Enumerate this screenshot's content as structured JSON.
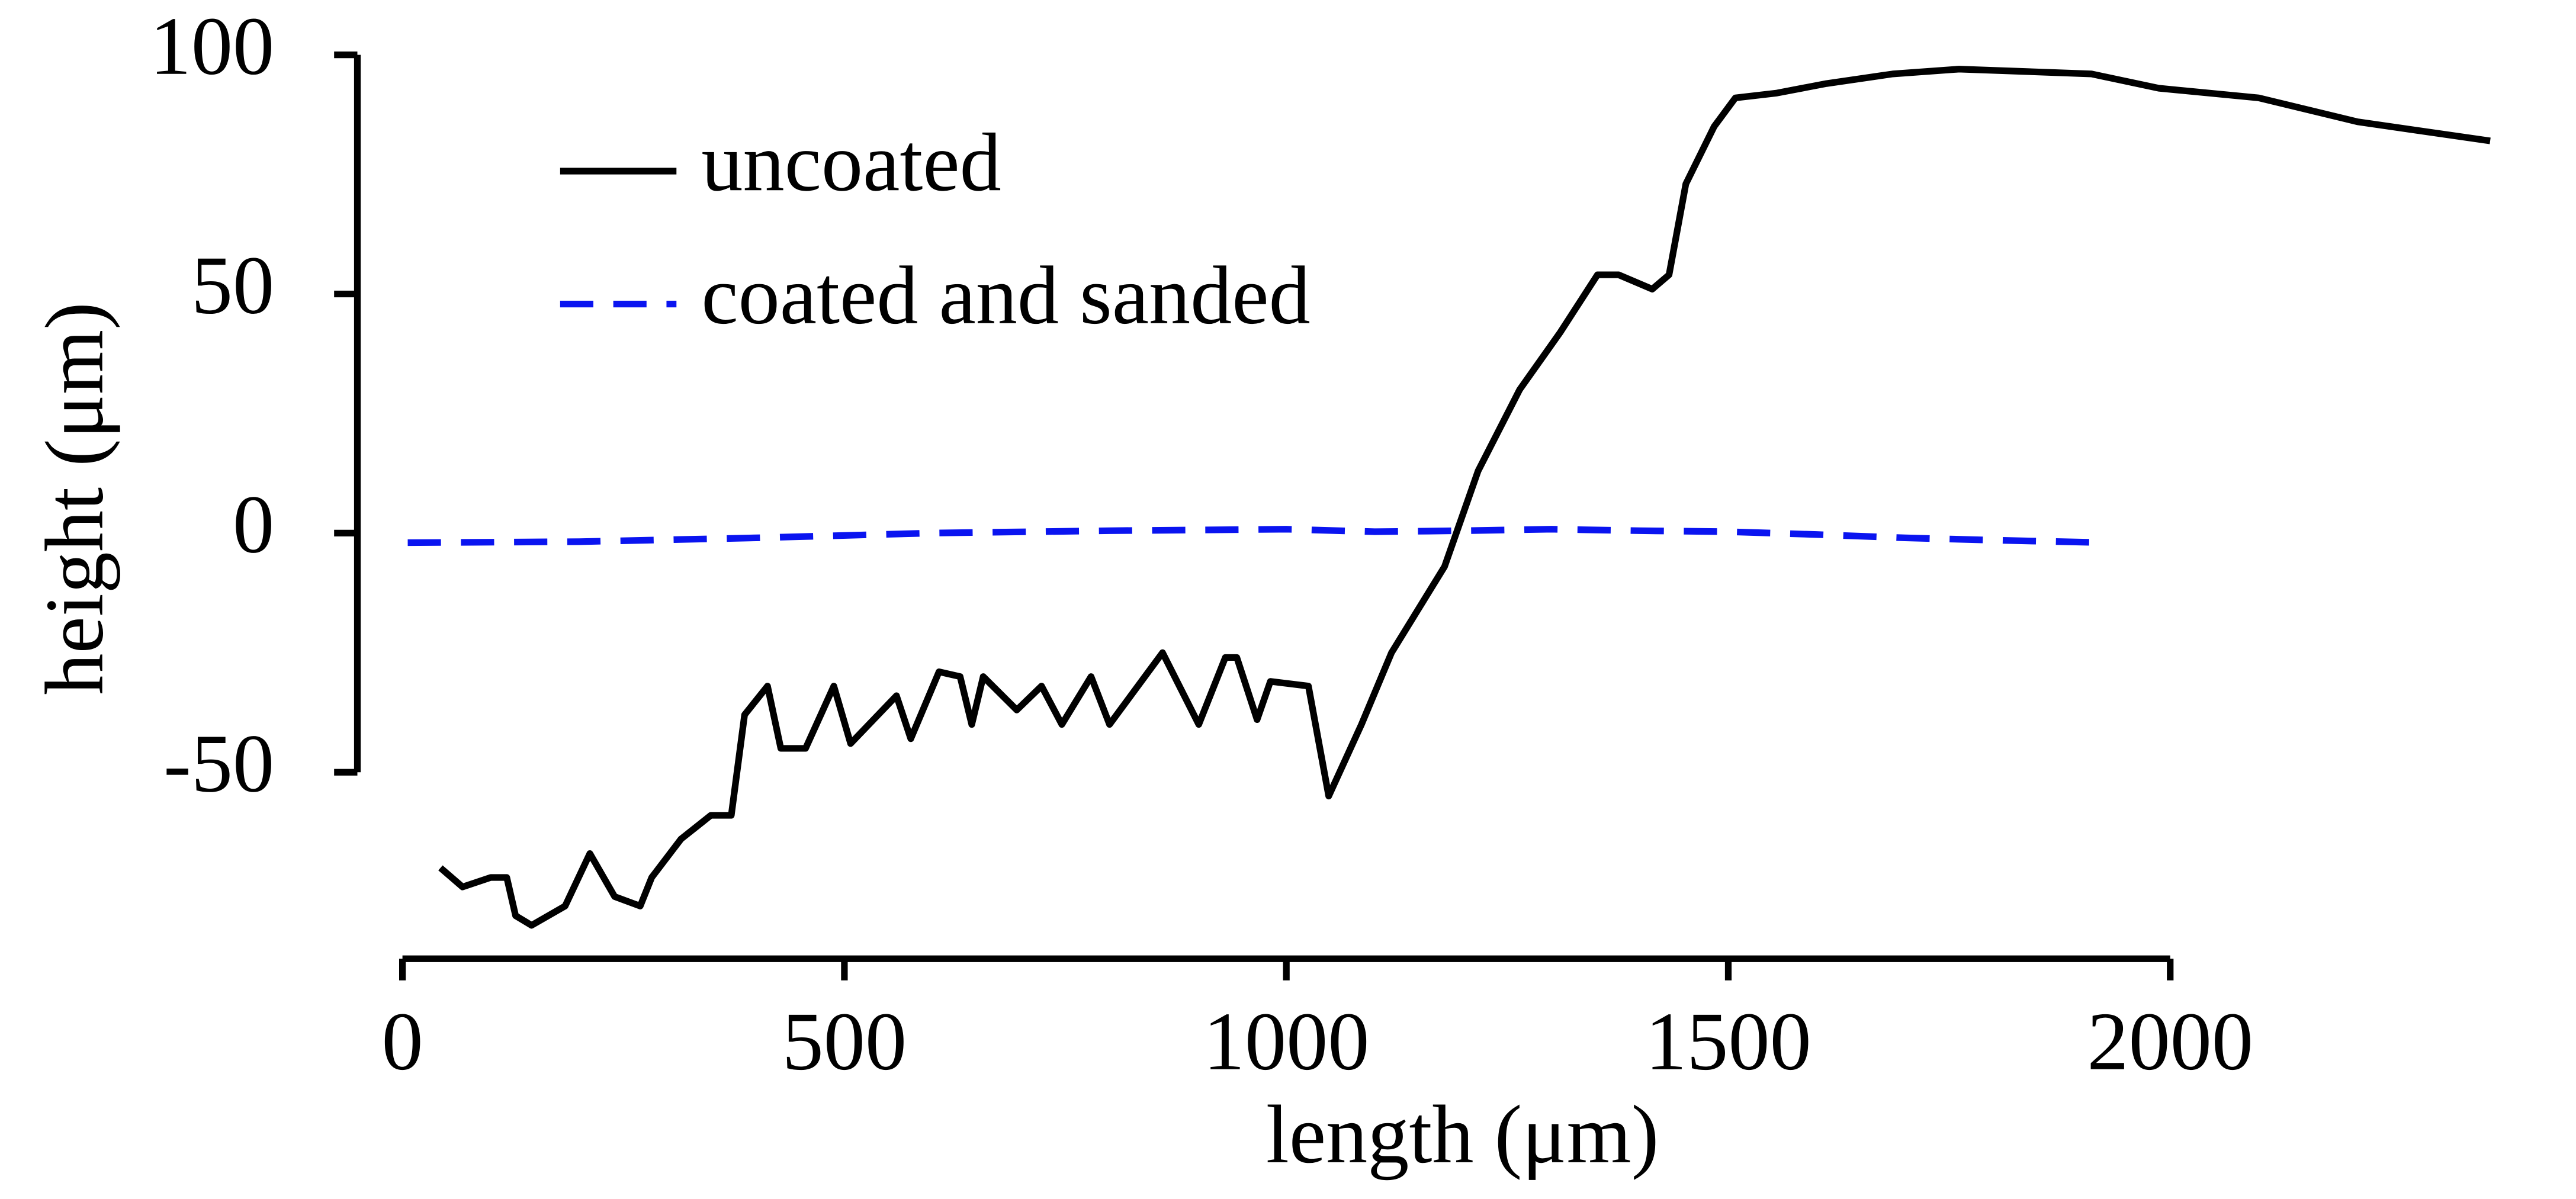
{
  "chart_data": {
    "type": "line",
    "xlabel": "length (μm)",
    "ylabel": "height (μm)",
    "xlim": [
      -51,
      2365
    ],
    "ylim": [
      -89,
      100
    ],
    "xticks": [
      0,
      500,
      1000,
      1500,
      2000
    ],
    "yticks": [
      -50,
      0,
      50,
      100
    ],
    "legend": "upper left",
    "series": [
      {
        "name": "uncoated",
        "color": "#000000",
        "linestyle": "solid",
        "x": [
          43,
          68,
          100,
          118,
          128,
          146,
          184,
          212,
          240,
          269,
          282,
          315,
          349,
          372,
          387,
          413,
          428,
          456,
          488,
          507,
          559,
          575,
          607,
          631,
          644,
          657,
          695,
          723,
          746,
          779,
          800,
          860,
          901,
          931,
          944,
          967,
          982,
          1025,
          1048,
          1085,
          1119,
          1179,
          1217,
          1264,
          1310,
          1352,
          1376,
          1414,
          1433,
          1452,
          1484,
          1508,
          1555,
          1611,
          1686,
          1761,
          1911,
          1987,
          2100,
          2212,
          2362
        ],
        "values": [
          -70,
          -74,
          -72,
          -72,
          -80,
          -82,
          -78,
          -67,
          -76,
          -78,
          -72,
          -64,
          -59,
          -59,
          -38,
          -32,
          -45,
          -45,
          -32,
          -44,
          -34,
          -43,
          -29,
          -30,
          -40,
          -30,
          -37,
          -32,
          -40,
          -30,
          -40,
          -25,
          -40,
          -26,
          -26,
          -39,
          -31,
          -32,
          -55,
          -40,
          -25,
          -7,
          13,
          30,
          42,
          54,
          54,
          51,
          54,
          73,
          85,
          91,
          92,
          94,
          96,
          97,
          96,
          93,
          91,
          86,
          82
        ]
      },
      {
        "name": "coated and sanded",
        "color": "#0a14f0",
        "linestyle": "dashed",
        "x": [
          6,
          200,
          400,
          600,
          800,
          1000,
          1100,
          1200,
          1300,
          1400,
          1500,
          1600,
          1700,
          1800,
          1927
        ],
        "values": [
          -2,
          -1.8,
          -1,
          0,
          0.5,
          0.8,
          0.3,
          0.5,
          0.8,
          0.5,
          0.3,
          -0.3,
          -1,
          -1.5,
          -2
        ]
      }
    ]
  }
}
